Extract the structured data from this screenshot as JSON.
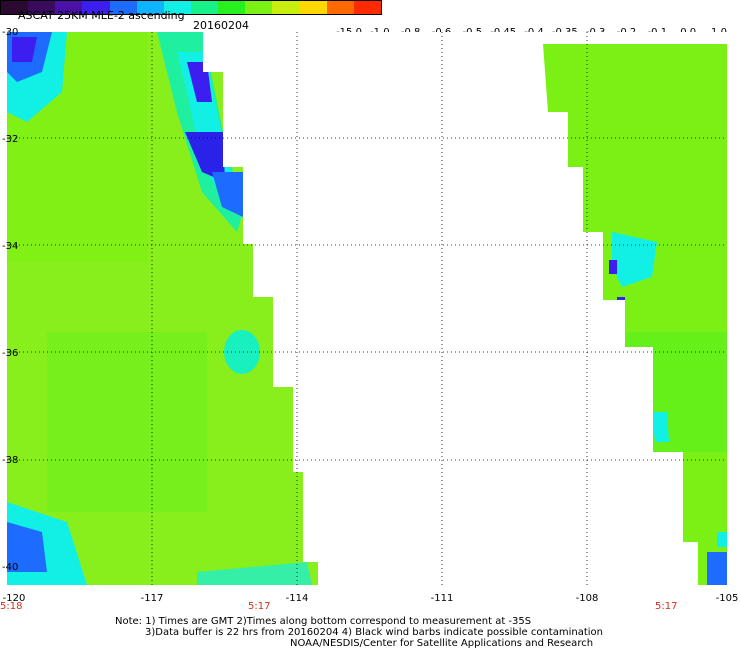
{
  "title": "ASCAT 25KM MLE-2 ascending",
  "date": "20160204",
  "colorbar": {
    "labels": [
      "-15.0",
      "-1.0",
      "-0.8",
      "-0.6",
      "-0.5",
      "-0.45",
      "-0.4",
      "-0.35",
      "-0.3",
      "-0.2",
      "-0.1",
      "0.0",
      "1.0"
    ],
    "colors": [
      "#2a0a2e",
      "#3a0a5c",
      "#4b10a8",
      "#3d1ef0",
      "#1e6cff",
      "#0fb4ff",
      "#12f0e6",
      "#18f08a",
      "#28f01e",
      "#7af014",
      "#c8ee10",
      "#ffd800",
      "#ff6a00",
      "#ff2a00"
    ]
  },
  "axes": {
    "y_labels": [
      "-30",
      "-32",
      "-34",
      "-36",
      "-38",
      "-40"
    ],
    "x_labels": [
      "-120",
      "-117",
      "-114",
      "-111",
      "-108",
      "-105"
    ]
  },
  "times": [
    "5:18",
    "5:17",
    "5:17"
  ],
  "notes": [
    "Note: 1) Times are GMT 2)Times along bottom correspond to measurement at -35S",
    "3)Data buffer is 22 hrs from 20160204 4) Black wind barbs indicate possible contamination",
    "NOAA/NESDIS/Center for Satellite Applications and Research"
  ]
}
